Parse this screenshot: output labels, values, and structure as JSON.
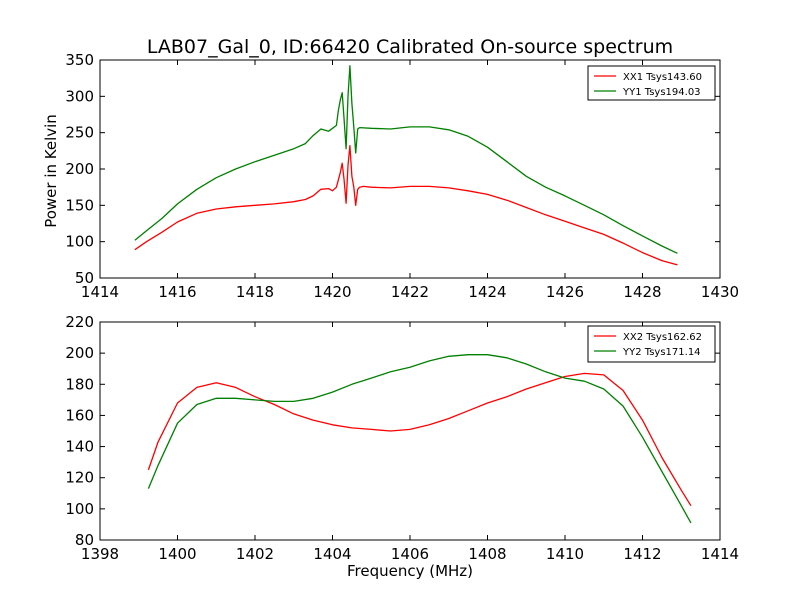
{
  "chart_data": [
    {
      "type": "line",
      "title": "LAB07_Gal_0, ID:66420 Calibrated On-source spectrum",
      "xlabel": "",
      "ylabel": "Power in Kelvin",
      "xlim": [
        1414,
        1430
      ],
      "ylim": [
        50,
        350
      ],
      "xticks": [
        "1414",
        "1416",
        "1418",
        "1420",
        "1422",
        "1424",
        "1426",
        "1428",
        "1430"
      ],
      "yticks": [
        "50",
        "100",
        "150",
        "200",
        "250",
        "300",
        "350"
      ],
      "xtick_values": [
        1414,
        1416,
        1418,
        1420,
        1422,
        1424,
        1426,
        1428,
        1430
      ],
      "ytick_values": [
        50,
        100,
        150,
        200,
        250,
        300,
        350
      ],
      "grid": false,
      "legend_position": "top-right",
      "series": [
        {
          "name": "XX1 Tsys143.60",
          "color": "#ff0000",
          "x": [
            1414.9,
            1415.2,
            1415.6,
            1416.0,
            1416.5,
            1417.0,
            1417.5,
            1418.0,
            1418.5,
            1419.0,
            1419.3,
            1419.5,
            1419.7,
            1419.9,
            1420.0,
            1420.1,
            1420.2,
            1420.25,
            1420.3,
            1420.35,
            1420.4,
            1420.45,
            1420.5,
            1420.55,
            1420.6,
            1420.65,
            1420.7,
            1420.8,
            1421.0,
            1421.5,
            1422.0,
            1422.5,
            1423.0,
            1423.5,
            1424.0,
            1424.5,
            1425.0,
            1425.5,
            1426.0,
            1426.5,
            1427.0,
            1427.5,
            1428.0,
            1428.5,
            1428.9
          ],
          "y": [
            89,
            100,
            113,
            127,
            139,
            145,
            148,
            150,
            152,
            155,
            158,
            163,
            172,
            173,
            170,
            175,
            195,
            208,
            185,
            153,
            205,
            232,
            190,
            175,
            150,
            172,
            175,
            176,
            175,
            174,
            176,
            176,
            174,
            170,
            165,
            157,
            147,
            137,
            128,
            119,
            110,
            98,
            85,
            74,
            68
          ]
        },
        {
          "name": "YY1 Tsys194.03",
          "color": "#008000",
          "x": [
            1414.9,
            1415.2,
            1415.6,
            1416.0,
            1416.5,
            1417.0,
            1417.5,
            1418.0,
            1418.5,
            1419.0,
            1419.3,
            1419.5,
            1419.7,
            1419.9,
            1420.0,
            1420.1,
            1420.15,
            1420.2,
            1420.25,
            1420.3,
            1420.35,
            1420.4,
            1420.45,
            1420.5,
            1420.55,
            1420.6,
            1420.65,
            1420.7,
            1421.0,
            1421.5,
            1422.0,
            1422.5,
            1423.0,
            1423.5,
            1424.0,
            1424.5,
            1425.0,
            1425.5,
            1426.0,
            1426.5,
            1427.0,
            1427.5,
            1428.0,
            1428.5,
            1428.9
          ],
          "y": [
            102,
            115,
            132,
            152,
            172,
            188,
            200,
            210,
            219,
            228,
            235,
            246,
            255,
            252,
            256,
            260,
            280,
            295,
            305,
            268,
            228,
            300,
            342,
            290,
            258,
            222,
            255,
            257,
            256,
            255,
            258,
            258,
            254,
            245,
            230,
            210,
            190,
            175,
            163,
            150,
            137,
            122,
            108,
            94,
            84
          ]
        }
      ]
    },
    {
      "type": "line",
      "title": "",
      "xlabel": "Frequency (MHz)",
      "ylabel": "",
      "xlim": [
        1398,
        1414
      ],
      "ylim": [
        80,
        220
      ],
      "xticks": [
        "1398",
        "1400",
        "1402",
        "1404",
        "1406",
        "1408",
        "1410",
        "1412",
        "1414"
      ],
      "yticks": [
        "80",
        "100",
        "120",
        "140",
        "160",
        "180",
        "200",
        "220"
      ],
      "xtick_values": [
        1398,
        1400,
        1402,
        1404,
        1406,
        1408,
        1410,
        1412,
        1414
      ],
      "ytick_values": [
        80,
        100,
        120,
        140,
        160,
        180,
        200,
        220
      ],
      "grid": false,
      "legend_position": "top-right",
      "series": [
        {
          "name": "XX2 Tsys162.62",
          "color": "#ff0000",
          "x": [
            1399.25,
            1399.5,
            1400.0,
            1400.5,
            1401.0,
            1401.5,
            1402.0,
            1402.5,
            1403.0,
            1403.5,
            1404.0,
            1404.5,
            1405.0,
            1405.5,
            1406.0,
            1406.5,
            1407.0,
            1407.5,
            1408.0,
            1408.5,
            1409.0,
            1409.5,
            1410.0,
            1410.5,
            1411.0,
            1411.5,
            1412.0,
            1412.5,
            1413.0,
            1413.25
          ],
          "y": [
            125,
            143,
            168,
            178,
            181,
            178,
            172,
            167,
            161,
            157,
            154,
            152,
            151,
            150,
            151,
            154,
            158,
            163,
            168,
            172,
            177,
            181,
            185,
            187,
            186,
            176,
            157,
            133,
            112,
            102
          ]
        },
        {
          "name": "YY2 Tsys171.14",
          "color": "#008000",
          "x": [
            1399.25,
            1399.5,
            1400.0,
            1400.5,
            1401.0,
            1401.5,
            1402.0,
            1402.5,
            1403.0,
            1403.5,
            1404.0,
            1404.5,
            1405.0,
            1405.5,
            1406.0,
            1406.5,
            1407.0,
            1407.5,
            1408.0,
            1408.5,
            1409.0,
            1409.5,
            1410.0,
            1410.5,
            1411.0,
            1411.5,
            1412.0,
            1412.5,
            1413.0,
            1413.25
          ],
          "y": [
            113,
            128,
            155,
            167,
            171,
            171,
            170,
            169,
            169,
            171,
            175,
            180,
            184,
            188,
            191,
            195,
            198,
            199,
            199,
            197,
            193,
            188,
            184,
            182,
            177,
            166,
            146,
            124,
            102,
            91
          ]
        }
      ]
    }
  ]
}
